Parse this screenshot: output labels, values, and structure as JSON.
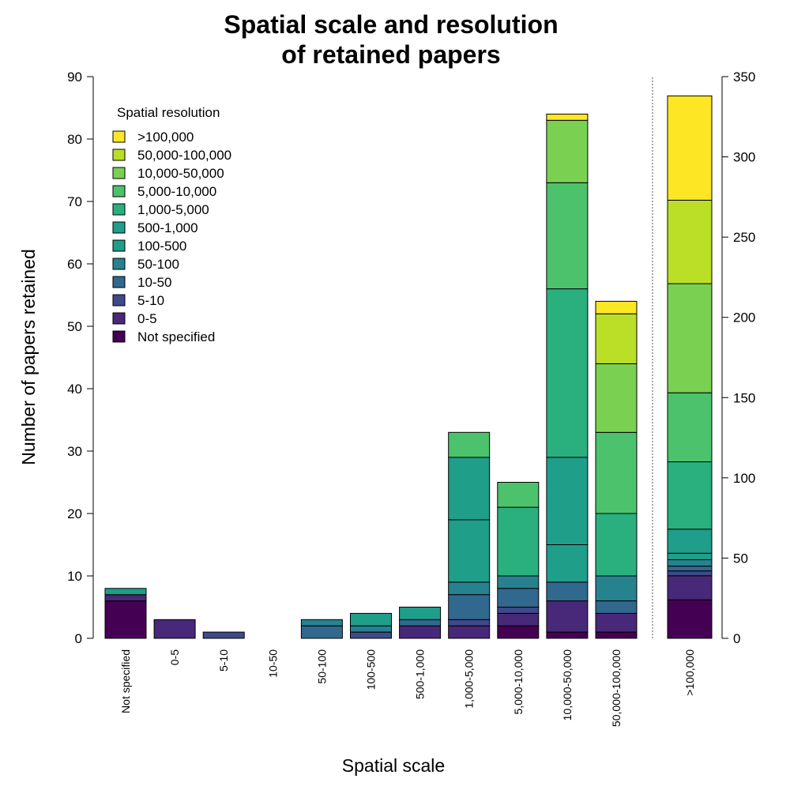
{
  "chart_data": {
    "type": "bar",
    "stacked": true,
    "title": "Spatial scale and resolution\nof retained papers",
    "title_lines": [
      "Spatial scale and resolution",
      "of retained papers"
    ],
    "xlabel": "Spatial scale",
    "ylabel": "Number of papers retained",
    "ylim": [
      0,
      90
    ],
    "yticks": [
      0,
      10,
      20,
      30,
      40,
      50,
      60,
      70,
      80,
      90
    ],
    "ylim_right": [
      0,
      350
    ],
    "yticks_right": [
      0,
      50,
      100,
      150,
      200,
      250,
      300,
      350
    ],
    "legend_title": "Spatial resolution",
    "legend_position": "top-left",
    "grid": false,
    "categories": [
      "Not specified",
      "0-5",
      "5-10",
      "10-50",
      "50-100",
      "100-500",
      "500-1,000",
      "1,000-5,000",
      "5,000-10,000",
      "10,000-50,000",
      "50,000-100,000"
    ],
    "separate_category": ">100,000",
    "separate_category_axis": "right",
    "series": [
      {
        "name": "Not specified",
        "color": "#440154",
        "values": [
          6,
          0,
          0,
          0,
          0,
          0,
          0,
          0,
          2,
          1,
          1
        ],
        "separate_value": 24
      },
      {
        "name": "0-5",
        "color": "#482878",
        "values": [
          1,
          3,
          0,
          0,
          0,
          0,
          2,
          2,
          2,
          5,
          3
        ],
        "separate_value": 15
      },
      {
        "name": "5-10",
        "color": "#3E4A89",
        "values": [
          0,
          0,
          1,
          0,
          0,
          1,
          0,
          1,
          1,
          0,
          0
        ],
        "separate_value": 3
      },
      {
        "name": "10-50",
        "color": "#31688E",
        "values": [
          0,
          0,
          0,
          0,
          2,
          0,
          1,
          4,
          3,
          3,
          2
        ],
        "separate_value": 3
      },
      {
        "name": "50-100",
        "color": "#26828E",
        "values": [
          0,
          0,
          0,
          0,
          1,
          1,
          0,
          2,
          2,
          0,
          4
        ],
        "separate_value": 4
      },
      {
        "name": "100-500",
        "color": "#1F9E89",
        "values": [
          1,
          0,
          0,
          0,
          0,
          2,
          2,
          10,
          0,
          6,
          0
        ],
        "separate_value": 4
      },
      {
        "name": "500-1,000",
        "color": "#1F9E89",
        "values": [
          0,
          0,
          0,
          0,
          0,
          0,
          0,
          10,
          0,
          14,
          0
        ],
        "separate_value": 15
      },
      {
        "name": "1,000-5,000",
        "color": "#2AB07F",
        "values": [
          0,
          0,
          0,
          0,
          0,
          0,
          0,
          0,
          11,
          27,
          10
        ],
        "separate_value": 42
      },
      {
        "name": "5,000-10,000",
        "color": "#4CC26C",
        "values": [
          0,
          0,
          0,
          0,
          0,
          0,
          0,
          4,
          4,
          17,
          13
        ],
        "separate_value": 43
      },
      {
        "name": "10,000-50,000",
        "color": "#7AD151",
        "values": [
          0,
          0,
          0,
          0,
          0,
          0,
          0,
          0,
          0,
          10,
          11
        ],
        "separate_value": 68
      },
      {
        "name": "50,000-100,000",
        "color": "#BBDF27",
        "values": [
          0,
          0,
          0,
          0,
          0,
          0,
          0,
          0,
          0,
          0,
          8
        ],
        "separate_value": 52
      },
      {
        "name": ">100,000",
        "color": "#FDE725",
        "values": [
          0,
          0,
          0,
          0,
          0,
          0,
          0,
          0,
          0,
          1,
          2
        ],
        "separate_value": 65
      }
    ],
    "legend_order": [
      ">100,000",
      "50,000-100,000",
      "10,000-50,000",
      "5,000-10,000",
      "1,000-5,000",
      "500-1,000",
      "100-500",
      "50-100",
      "10-50",
      "5-10",
      "0-5",
      "Not specified"
    ]
  }
}
